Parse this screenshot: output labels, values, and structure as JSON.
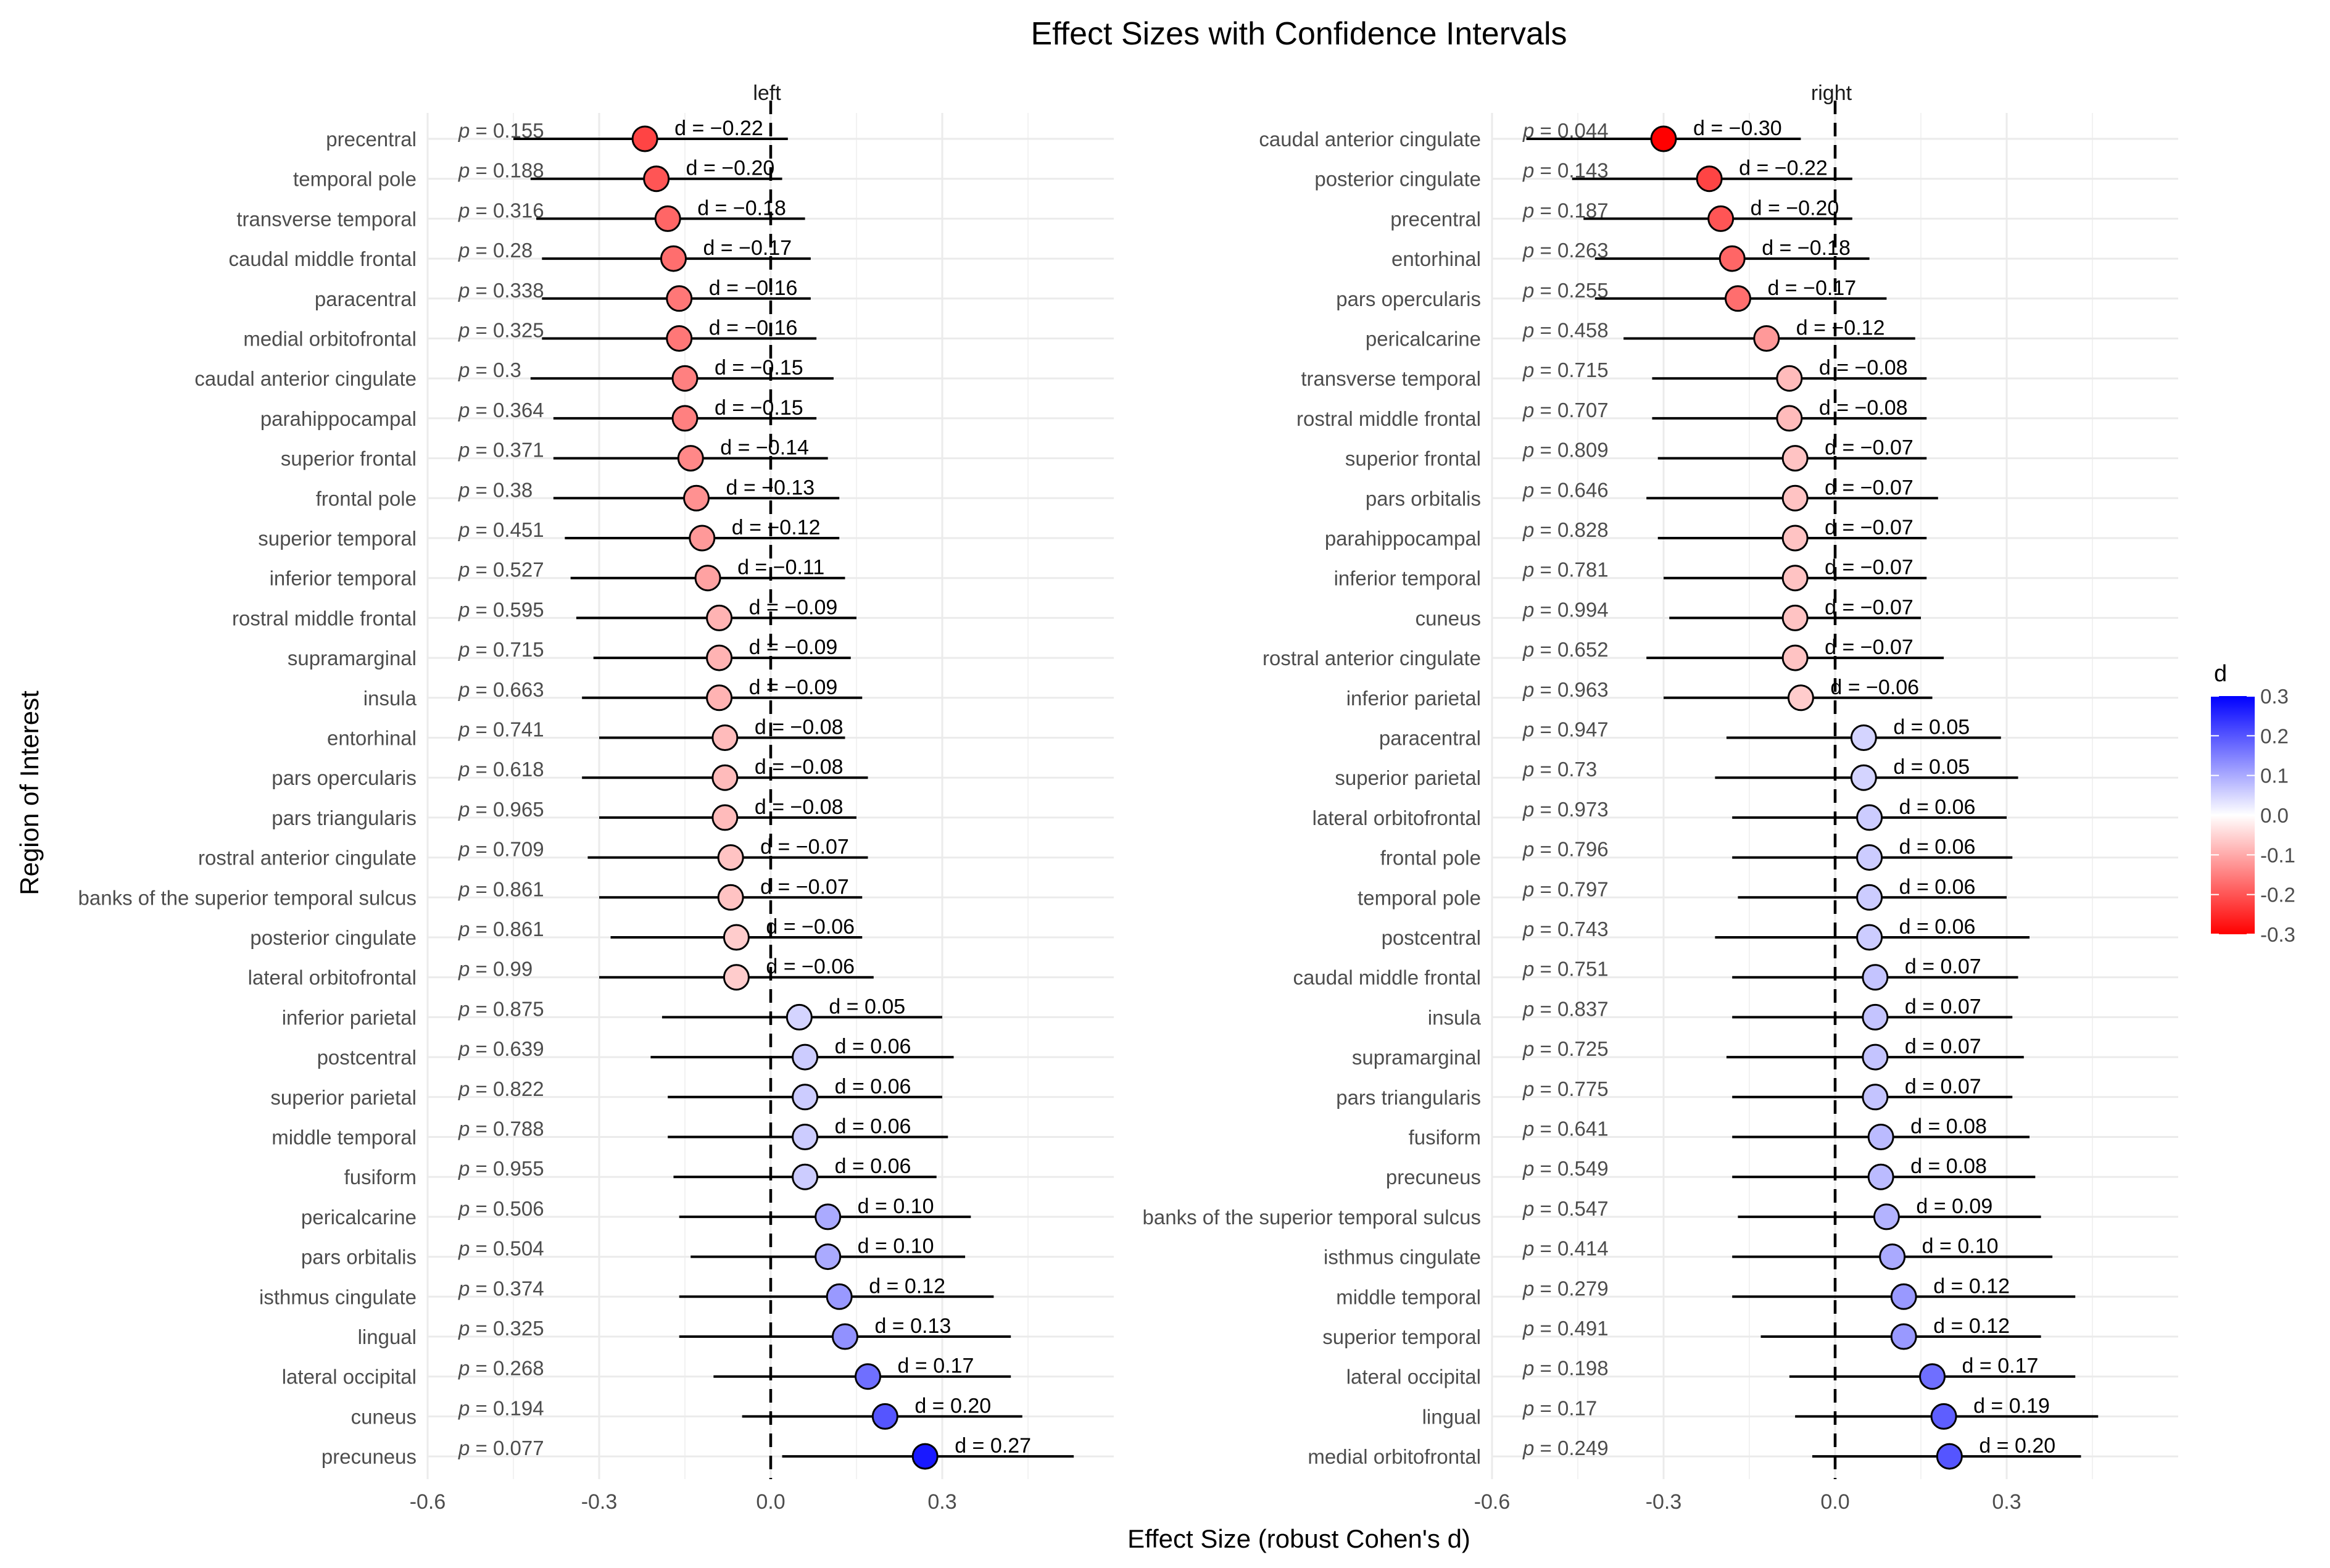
{
  "chart_data": {
    "type": "forest",
    "title": "Effect Sizes with Confidence Intervals",
    "xlabel": "Effect Size (robust Cohen's d)",
    "ylabel": "Region of Interest",
    "xlim": [
      -0.6,
      0.6
    ],
    "x_ticks": [
      -0.6,
      -0.3,
      0.0,
      0.3
    ],
    "x_tick_labels": [
      "-0.6",
      "-0.3",
      "0.0",
      "0.3"
    ],
    "reference_line": 0,
    "legend": {
      "title": "d",
      "position": "right",
      "range": [
        -0.3,
        0.3
      ],
      "ticks": [
        "0.3",
        "0.2",
        "0.1",
        "0.0",
        "-0.1",
        "-0.2",
        "-0.3"
      ],
      "colors": {
        "low": "#ff0000",
        "mid": "#ffffff",
        "high": "#0000ff"
      }
    },
    "panels": [
      {
        "name": "left",
        "rows": [
          {
            "region": "precentral",
            "d": -0.22,
            "d_label": "d = −0.22",
            "ci": [
              -0.45,
              0.03
            ],
            "p": "p = 0.155"
          },
          {
            "region": "temporal pole",
            "d": -0.2,
            "d_label": "d = −0.20",
            "ci": [
              -0.42,
              0.02
            ],
            "p": "p = 0.188"
          },
          {
            "region": "transverse temporal",
            "d": -0.18,
            "d_label": "d = −0.18",
            "ci": [
              -0.41,
              0.06
            ],
            "p": "p = 0.316"
          },
          {
            "region": "caudal middle frontal",
            "d": -0.17,
            "d_label": "d = −0.17",
            "ci": [
              -0.4,
              0.07
            ],
            "p": "p = 0.28"
          },
          {
            "region": "paracentral",
            "d": -0.16,
            "d_label": "d = −0.16",
            "ci": [
              -0.4,
              0.07
            ],
            "p": "p = 0.338"
          },
          {
            "region": "medial orbitofrontal",
            "d": -0.16,
            "d_label": "d = −0.16",
            "ci": [
              -0.4,
              0.08
            ],
            "p": "p = 0.325"
          },
          {
            "region": "caudal anterior cingulate",
            "d": -0.15,
            "d_label": "d = −0.15",
            "ci": [
              -0.42,
              0.11
            ],
            "p": "p = 0.3"
          },
          {
            "region": "parahippocampal",
            "d": -0.15,
            "d_label": "d = −0.15",
            "ci": [
              -0.38,
              0.08
            ],
            "p": "p = 0.364"
          },
          {
            "region": "superior frontal",
            "d": -0.14,
            "d_label": "d = −0.14",
            "ci": [
              -0.38,
              0.1
            ],
            "p": "p = 0.371"
          },
          {
            "region": "frontal pole",
            "d": -0.13,
            "d_label": "d = −0.13",
            "ci": [
              -0.38,
              0.12
            ],
            "p": "p = 0.38"
          },
          {
            "region": "superior temporal",
            "d": -0.12,
            "d_label": "d = −0.12",
            "ci": [
              -0.36,
              0.12
            ],
            "p": "p = 0.451"
          },
          {
            "region": "inferior temporal",
            "d": -0.11,
            "d_label": "d = −0.11",
            "ci": [
              -0.35,
              0.13
            ],
            "p": "p = 0.527"
          },
          {
            "region": "rostral middle frontal",
            "d": -0.09,
            "d_label": "d = −0.09",
            "ci": [
              -0.34,
              0.15
            ],
            "p": "p = 0.595"
          },
          {
            "region": "supramarginal",
            "d": -0.09,
            "d_label": "d = −0.09",
            "ci": [
              -0.31,
              0.14
            ],
            "p": "p = 0.715"
          },
          {
            "region": "insula",
            "d": -0.09,
            "d_label": "d = −0.09",
            "ci": [
              -0.33,
              0.16
            ],
            "p": "p = 0.663"
          },
          {
            "region": "entorhinal",
            "d": -0.08,
            "d_label": "d = −0.08",
            "ci": [
              -0.3,
              0.13
            ],
            "p": "p = 0.741"
          },
          {
            "region": "pars opercularis",
            "d": -0.08,
            "d_label": "d = −0.08",
            "ci": [
              -0.33,
              0.17
            ],
            "p": "p = 0.618"
          },
          {
            "region": "pars triangularis",
            "d": -0.08,
            "d_label": "d = −0.08",
            "ci": [
              -0.3,
              0.15
            ],
            "p": "p = 0.965"
          },
          {
            "region": "rostral anterior cingulate",
            "d": -0.07,
            "d_label": "d = −0.07",
            "ci": [
              -0.32,
              0.17
            ],
            "p": "p = 0.709"
          },
          {
            "region": "banks of the superior temporal sulcus",
            "d": -0.07,
            "d_label": "d = −0.07",
            "ci": [
              -0.3,
              0.16
            ],
            "p": "p = 0.861"
          },
          {
            "region": "posterior cingulate",
            "d": -0.06,
            "d_label": "d = −0.06",
            "ci": [
              -0.28,
              0.16
            ],
            "p": "p = 0.861"
          },
          {
            "region": "lateral orbitofrontal",
            "d": -0.06,
            "d_label": "d = −0.06",
            "ci": [
              -0.3,
              0.18
            ],
            "p": "p = 0.99"
          },
          {
            "region": "inferior parietal",
            "d": 0.05,
            "d_label": "d =  0.05",
            "ci": [
              -0.19,
              0.3
            ],
            "p": "p = 0.875"
          },
          {
            "region": "postcentral",
            "d": 0.06,
            "d_label": "d =  0.06",
            "ci": [
              -0.21,
              0.32
            ],
            "p": "p = 0.639"
          },
          {
            "region": "superior parietal",
            "d": 0.06,
            "d_label": "d =  0.06",
            "ci": [
              -0.18,
              0.3
            ],
            "p": "p = 0.822"
          },
          {
            "region": "middle temporal",
            "d": 0.06,
            "d_label": "d =  0.06",
            "ci": [
              -0.18,
              0.31
            ],
            "p": "p = 0.788"
          },
          {
            "region": "fusiform",
            "d": 0.06,
            "d_label": "d =  0.06",
            "ci": [
              -0.17,
              0.29
            ],
            "p": "p = 0.955"
          },
          {
            "region": "pericalcarine",
            "d": 0.1,
            "d_label": "d =  0.10",
            "ci": [
              -0.16,
              0.35
            ],
            "p": "p = 0.506"
          },
          {
            "region": "pars orbitalis",
            "d": 0.1,
            "d_label": "d =  0.10",
            "ci": [
              -0.14,
              0.34
            ],
            "p": "p = 0.504"
          },
          {
            "region": "isthmus cingulate",
            "d": 0.12,
            "d_label": "d =  0.12",
            "ci": [
              -0.16,
              0.39
            ],
            "p": "p = 0.374"
          },
          {
            "region": "lingual",
            "d": 0.13,
            "d_label": "d =  0.13",
            "ci": [
              -0.16,
              0.42
            ],
            "p": "p = 0.325"
          },
          {
            "region": "lateral occipital",
            "d": 0.17,
            "d_label": "d =  0.17",
            "ci": [
              -0.1,
              0.42
            ],
            "p": "p = 0.268"
          },
          {
            "region": "cuneus",
            "d": 0.2,
            "d_label": "d =  0.20",
            "ci": [
              -0.05,
              0.44
            ],
            "p": "p = 0.194"
          },
          {
            "region": "precuneus",
            "d": 0.27,
            "d_label": "d =  0.27",
            "ci": [
              0.02,
              0.53
            ],
            "p": "p = 0.077"
          }
        ]
      },
      {
        "name": "right",
        "rows": [
          {
            "region": "caudal anterior cingulate",
            "d": -0.3,
            "d_label": "d = −0.30",
            "ci": [
              -0.54,
              -0.06
            ],
            "p": "p = 0.044"
          },
          {
            "region": "posterior cingulate",
            "d": -0.22,
            "d_label": "d = −0.22",
            "ci": [
              -0.46,
              0.03
            ],
            "p": "p = 0.143"
          },
          {
            "region": "precentral",
            "d": -0.2,
            "d_label": "d = −0.20",
            "ci": [
              -0.44,
              0.03
            ],
            "p": "p = 0.187"
          },
          {
            "region": "entorhinal",
            "d": -0.18,
            "d_label": "d = −0.18",
            "ci": [
              -0.42,
              0.06
            ],
            "p": "p = 0.263"
          },
          {
            "region": "pars opercularis",
            "d": -0.17,
            "d_label": "d = −0.17",
            "ci": [
              -0.42,
              0.09
            ],
            "p": "p = 0.255"
          },
          {
            "region": "pericalcarine",
            "d": -0.12,
            "d_label": "d = −0.12",
            "ci": [
              -0.37,
              0.14
            ],
            "p": "p = 0.458"
          },
          {
            "region": "transverse temporal",
            "d": -0.08,
            "d_label": "d = −0.08",
            "ci": [
              -0.32,
              0.16
            ],
            "p": "p = 0.715"
          },
          {
            "region": "rostral middle frontal",
            "d": -0.08,
            "d_label": "d = −0.08",
            "ci": [
              -0.32,
              0.16
            ],
            "p": "p = 0.707"
          },
          {
            "region": "superior frontal",
            "d": -0.07,
            "d_label": "d = −0.07",
            "ci": [
              -0.31,
              0.16
            ],
            "p": "p = 0.809"
          },
          {
            "region": "pars orbitalis",
            "d": -0.07,
            "d_label": "d = −0.07",
            "ci": [
              -0.33,
              0.18
            ],
            "p": "p = 0.646"
          },
          {
            "region": "parahippocampal",
            "d": -0.07,
            "d_label": "d = −0.07",
            "ci": [
              -0.31,
              0.16
            ],
            "p": "p = 0.828"
          },
          {
            "region": "inferior temporal",
            "d": -0.07,
            "d_label": "d = −0.07",
            "ci": [
              -0.3,
              0.16
            ],
            "p": "p = 0.781"
          },
          {
            "region": "cuneus",
            "d": -0.07,
            "d_label": "d = −0.07",
            "ci": [
              -0.29,
              0.15
            ],
            "p": "p = 0.994"
          },
          {
            "region": "rostral anterior cingulate",
            "d": -0.07,
            "d_label": "d = −0.07",
            "ci": [
              -0.33,
              0.19
            ],
            "p": "p = 0.652"
          },
          {
            "region": "inferior parietal",
            "d": -0.06,
            "d_label": "d = −0.06",
            "ci": [
              -0.3,
              0.17
            ],
            "p": "p = 0.963"
          },
          {
            "region": "paracentral",
            "d": 0.05,
            "d_label": "d =  0.05",
            "ci": [
              -0.19,
              0.29
            ],
            "p": "p = 0.947"
          },
          {
            "region": "superior parietal",
            "d": 0.05,
            "d_label": "d =  0.05",
            "ci": [
              -0.21,
              0.32
            ],
            "p": "p = 0.73"
          },
          {
            "region": "lateral orbitofrontal",
            "d": 0.06,
            "d_label": "d =  0.06",
            "ci": [
              -0.18,
              0.3
            ],
            "p": "p = 0.973"
          },
          {
            "region": "frontal pole",
            "d": 0.06,
            "d_label": "d =  0.06",
            "ci": [
              -0.18,
              0.31
            ],
            "p": "p = 0.796"
          },
          {
            "region": "temporal pole",
            "d": 0.06,
            "d_label": "d =  0.06",
            "ci": [
              -0.17,
              0.3
            ],
            "p": "p = 0.797"
          },
          {
            "region": "postcentral",
            "d": 0.06,
            "d_label": "d =  0.06",
            "ci": [
              -0.21,
              0.34
            ],
            "p": "p = 0.743"
          },
          {
            "region": "caudal middle frontal",
            "d": 0.07,
            "d_label": "d =  0.07",
            "ci": [
              -0.18,
              0.32
            ],
            "p": "p = 0.751"
          },
          {
            "region": "insula",
            "d": 0.07,
            "d_label": "d =  0.07",
            "ci": [
              -0.18,
              0.31
            ],
            "p": "p = 0.837"
          },
          {
            "region": "supramarginal",
            "d": 0.07,
            "d_label": "d =  0.07",
            "ci": [
              -0.19,
              0.33
            ],
            "p": "p = 0.725"
          },
          {
            "region": "pars triangularis",
            "d": 0.07,
            "d_label": "d =  0.07",
            "ci": [
              -0.18,
              0.31
            ],
            "p": "p = 0.775"
          },
          {
            "region": "fusiform",
            "d": 0.08,
            "d_label": "d =  0.08",
            "ci": [
              -0.18,
              0.34
            ],
            "p": "p = 0.641"
          },
          {
            "region": "precuneus",
            "d": 0.08,
            "d_label": "d =  0.08",
            "ci": [
              -0.18,
              0.35
            ],
            "p": "p = 0.549"
          },
          {
            "region": "banks of the superior temporal sulcus",
            "d": 0.09,
            "d_label": "d =  0.09",
            "ci": [
              -0.17,
              0.36
            ],
            "p": "p = 0.547"
          },
          {
            "region": "isthmus cingulate",
            "d": 0.1,
            "d_label": "d =  0.10",
            "ci": [
              -0.18,
              0.38
            ],
            "p": "p = 0.414"
          },
          {
            "region": "middle temporal",
            "d": 0.12,
            "d_label": "d =  0.12",
            "ci": [
              -0.18,
              0.42
            ],
            "p": "p = 0.279"
          },
          {
            "region": "superior temporal",
            "d": 0.12,
            "d_label": "d =  0.12",
            "ci": [
              -0.13,
              0.36
            ],
            "p": "p = 0.491"
          },
          {
            "region": "lateral occipital",
            "d": 0.17,
            "d_label": "d =  0.17",
            "ci": [
              -0.08,
              0.42
            ],
            "p": "p = 0.198"
          },
          {
            "region": "lingual",
            "d": 0.19,
            "d_label": "d =  0.19",
            "ci": [
              -0.07,
              0.46
            ],
            "p": "p = 0.17"
          },
          {
            "region": "medial orbitofrontal",
            "d": 0.2,
            "d_label": "d =  0.20",
            "ci": [
              -0.04,
              0.43
            ],
            "p": "p = 0.249"
          }
        ]
      }
    ]
  }
}
